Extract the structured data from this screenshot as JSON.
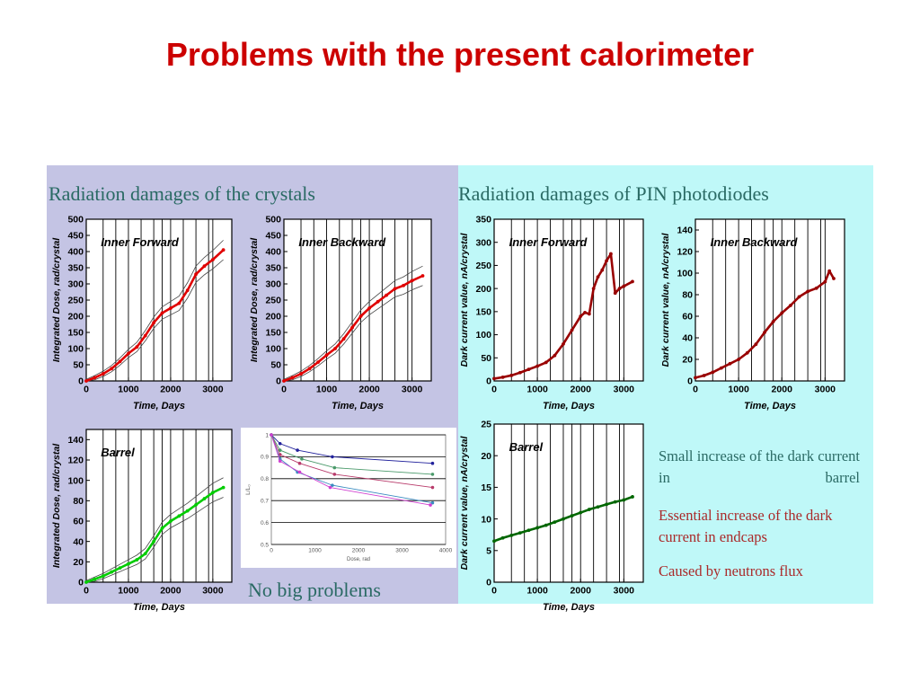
{
  "title": "Problems with the present calorimeter",
  "left_heading": "Radiation damages of the crystals",
  "right_heading": "Radiation damages of PIN photodiodes",
  "no_problems": "No big problems",
  "notes": {
    "barrel": "Small increase of the dark current in barrel",
    "endcaps": "Essential increase of the dark current in endcaps",
    "cause": "Caused by neutrons flux"
  },
  "colors": {
    "title": "#cc0000",
    "heading": "#2a6a64",
    "red_series": "#e00000",
    "green_series": "#00cc00",
    "dark_red_series": "#990000",
    "dark_green_series": "#006600",
    "left_bg": "#c4c4e4",
    "right_bg": "#bff8f8"
  },
  "chart_data": [
    {
      "id": "dose_if",
      "type": "line",
      "title": "Inner Forward",
      "xlabel": "Time, Days",
      "ylabel": "Integrated  Dose,  rad/crystal",
      "xlim": [
        0,
        3450
      ],
      "ylim": [
        0,
        500
      ],
      "xticks": [
        0,
        1000,
        2000,
        3000
      ],
      "yticks": [
        0,
        50,
        100,
        150,
        200,
        250,
        300,
        350,
        400,
        450,
        500
      ],
      "vlines": [
        400,
        700,
        1000,
        1300,
        1600,
        1800,
        2000,
        2300,
        2600,
        2900,
        3000
      ],
      "band": 25,
      "color": "#e00000",
      "x": [
        0,
        200,
        400,
        600,
        800,
        1000,
        1200,
        1400,
        1600,
        1800,
        2000,
        2200,
        2400,
        2600,
        2800,
        3000,
        3250
      ],
      "y": [
        0,
        10,
        22,
        38,
        60,
        85,
        105,
        140,
        180,
        210,
        225,
        240,
        280,
        330,
        355,
        375,
        405
      ]
    },
    {
      "id": "dose_ib",
      "type": "line",
      "title": "Inner Backward",
      "xlabel": "Time, Days",
      "ylabel": "Integrated  Dose,  rad/crystal",
      "xlim": [
        0,
        3450
      ],
      "ylim": [
        0,
        500
      ],
      "xticks": [
        0,
        1000,
        2000,
        3000
      ],
      "yticks": [
        0,
        50,
        100,
        150,
        200,
        250,
        300,
        350,
        400,
        450,
        500
      ],
      "vlines": [
        400,
        700,
        1000,
        1300,
        1600,
        1800,
        2000,
        2300,
        2600,
        2900,
        3000
      ],
      "band": 25,
      "color": "#e00000",
      "x": [
        0,
        200,
        400,
        600,
        800,
        1000,
        1200,
        1400,
        1600,
        1800,
        2000,
        2200,
        2400,
        2600,
        2800,
        3000,
        3250
      ],
      "y": [
        0,
        10,
        22,
        38,
        58,
        80,
        100,
        130,
        165,
        200,
        225,
        245,
        265,
        285,
        295,
        310,
        325
      ]
    },
    {
      "id": "dose_barrel",
      "type": "line",
      "title": "Barrel",
      "xlabel": "Time, Days",
      "ylabel": "Integrated  Dose,  rad/crystal",
      "xlim": [
        0,
        3450
      ],
      "ylim": [
        0,
        150
      ],
      "xticks": [
        0,
        1000,
        2000,
        3000
      ],
      "yticks": [
        0,
        20,
        40,
        60,
        80,
        100,
        120,
        140
      ],
      "vlines": [
        400,
        700,
        1000,
        1300,
        1600,
        1800,
        2000,
        2300,
        2600,
        2900,
        3000
      ],
      "band": 8,
      "color": "#00cc00",
      "x": [
        0,
        200,
        400,
        600,
        800,
        1000,
        1200,
        1400,
        1600,
        1800,
        2000,
        2200,
        2400,
        2600,
        2800,
        3000,
        3250
      ],
      "y": [
        0,
        3,
        6,
        10,
        14,
        18,
        22,
        28,
        40,
        53,
        60,
        65,
        70,
        76,
        82,
        88,
        93
      ]
    },
    {
      "id": "ly_dose",
      "type": "scatter",
      "xlabel": "Dose, rad",
      "ylabel": "L/L₀",
      "xlim": [
        0,
        4000
      ],
      "ylim": [
        0.5,
        1.0
      ],
      "xticks": [
        0,
        1000,
        2000,
        3000,
        4000
      ],
      "yticks": [
        0.5,
        0.6,
        0.7,
        0.8,
        0.9,
        1
      ],
      "series": [
        {
          "color": "#22229c",
          "x": [
            0,
            200,
            600,
            1400,
            3700
          ],
          "y": [
            1.0,
            0.96,
            0.93,
            0.9,
            0.87
          ]
        },
        {
          "color": "#4a9a6a",
          "x": [
            0,
            200,
            700,
            1450,
            3700
          ],
          "y": [
            1.0,
            0.93,
            0.89,
            0.85,
            0.82
          ]
        },
        {
          "color": "#b83a6a",
          "x": [
            0,
            200,
            650,
            1450,
            3700
          ],
          "y": [
            1.0,
            0.91,
            0.87,
            0.82,
            0.76
          ]
        },
        {
          "color": "#3a8ac0",
          "x": [
            0,
            200,
            600,
            1400,
            3700
          ],
          "y": [
            1.0,
            0.89,
            0.83,
            0.77,
            0.69
          ]
        },
        {
          "color": "#d040d0",
          "x": [
            0,
            200,
            650,
            1350,
            3650
          ],
          "y": [
            1.0,
            0.88,
            0.83,
            0.76,
            0.68
          ]
        }
      ]
    },
    {
      "id": "pin_if",
      "type": "line",
      "title": "Inner Forward",
      "xlabel": "Time, Days",
      "ylabel": "Dark current value,  nA/crystal",
      "xlim": [
        0,
        3450
      ],
      "ylim": [
        0,
        350
      ],
      "xticks": [
        0,
        1000,
        2000,
        3000
      ],
      "yticks": [
        0,
        50,
        100,
        150,
        200,
        250,
        300,
        350
      ],
      "vlines": [
        400,
        700,
        1000,
        1300,
        1600,
        1800,
        2000,
        2300,
        2600,
        2900,
        3000
      ],
      "color": "#990000",
      "x": [
        0,
        200,
        400,
        600,
        800,
        1000,
        1200,
        1400,
        1600,
        1800,
        2000,
        2100,
        2200,
        2300,
        2400,
        2500,
        2600,
        2700,
        2800,
        2900,
        3000,
        3200
      ],
      "y": [
        5,
        8,
        12,
        18,
        25,
        32,
        40,
        55,
        80,
        110,
        140,
        148,
        145,
        200,
        225,
        240,
        260,
        275,
        190,
        200,
        205,
        215
      ]
    },
    {
      "id": "pin_ib",
      "type": "line",
      "title": "Inner Backward",
      "xlabel": "Time, Days",
      "ylabel": "Dark current value,  nA/crystal",
      "xlim": [
        0,
        3450
      ],
      "ylim": [
        0,
        150
      ],
      "xticks": [
        0,
        1000,
        2000,
        3000
      ],
      "yticks": [
        0,
        20,
        40,
        60,
        80,
        100,
        120,
        140
      ],
      "vlines": [
        400,
        700,
        1000,
        1300,
        1600,
        1800,
        2000,
        2300,
        2600,
        2900,
        3000
      ],
      "color": "#990000",
      "x": [
        0,
        200,
        400,
        600,
        800,
        1000,
        1200,
        1400,
        1600,
        1800,
        2000,
        2200,
        2400,
        2600,
        2800,
        3000,
        3100,
        3200
      ],
      "y": [
        3,
        5,
        8,
        12,
        16,
        20,
        26,
        34,
        45,
        55,
        63,
        70,
        78,
        83,
        86,
        92,
        102,
        95
      ]
    },
    {
      "id": "pin_barrel",
      "type": "line",
      "title": "Barrel",
      "xlabel": "Time, Days",
      "ylabel": "Dark current value,  nA/crystal",
      "xlim": [
        0,
        3450
      ],
      "ylim": [
        0,
        25
      ],
      "xticks": [
        0,
        1000,
        2000,
        3000
      ],
      "yticks": [
        0,
        5,
        10,
        15,
        20,
        25
      ],
      "vlines": [
        400,
        700,
        1000,
        1300,
        1600,
        1800,
        2000,
        2300,
        2600,
        2900,
        3000
      ],
      "color": "#006600",
      "x": [
        0,
        200,
        400,
        600,
        800,
        1000,
        1200,
        1400,
        1600,
        1800,
        2000,
        2200,
        2400,
        2600,
        2800,
        3000,
        3200
      ],
      "y": [
        6.5,
        7,
        7.4,
        7.8,
        8.2,
        8.6,
        9,
        9.5,
        10,
        10.5,
        11,
        11.5,
        11.9,
        12.3,
        12.7,
        13,
        13.5
      ]
    }
  ]
}
